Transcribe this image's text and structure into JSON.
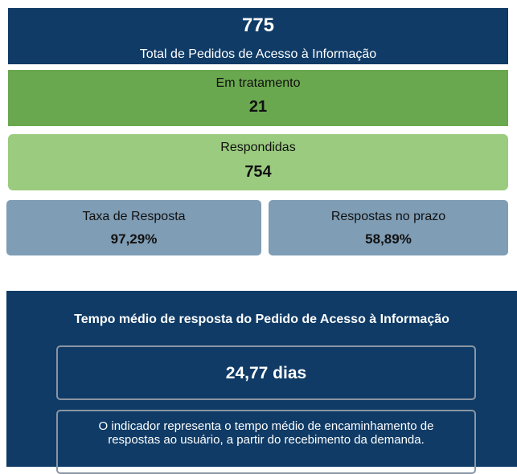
{
  "summary": {
    "total": {
      "value": "775",
      "label": "Total de Pedidos de Acesso à Informação"
    },
    "in_progress": {
      "label": "Em tratamento",
      "value": "21"
    },
    "answered": {
      "label": "Respondidas",
      "value": "754"
    },
    "rates": [
      {
        "label": "Taxa de Resposta",
        "value": "97,29%"
      },
      {
        "label": "Respostas no prazo",
        "value": "58,89%"
      }
    ]
  },
  "response_time": {
    "title": "Tempo médio de resposta do Pedido de Acesso à Informação",
    "value": "24,77 dias",
    "description": "O indicador representa o tempo médio de encaminhamento de respostas ao usuário, a partir do recebimento da demanda."
  }
}
